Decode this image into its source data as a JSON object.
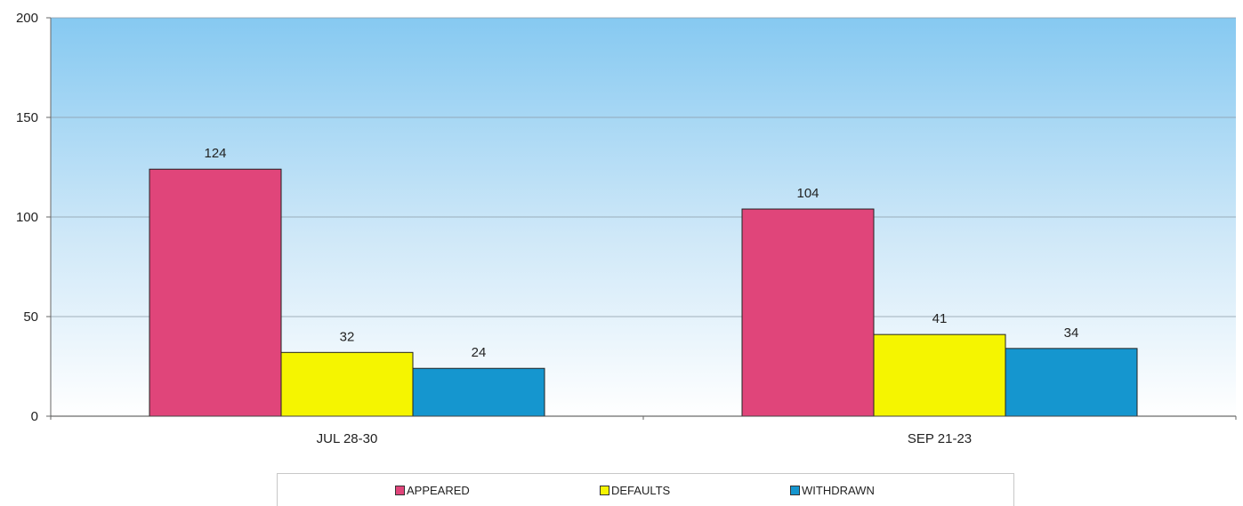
{
  "chart_data": {
    "type": "bar",
    "title": "",
    "xlabel": "",
    "ylabel": "",
    "categories": [
      "JUL 28-30",
      "SEP 21-23"
    ],
    "series": [
      {
        "name": "APPEARED",
        "values": [
          124,
          104
        ],
        "color": "#e0457a"
      },
      {
        "name": "DEFAULTS",
        "values": [
          32,
          41
        ],
        "color": "#f5f500"
      },
      {
        "name": "WITHDRAWN",
        "values": [
          24,
          34
        ],
        "color": "#1596cf"
      }
    ],
    "ylim": [
      0,
      200
    ],
    "yticks": [
      "0",
      "50",
      "100",
      "150",
      "200"
    ],
    "grid": true,
    "legend_position": "bottom",
    "background_gradient": [
      "#86c9f1",
      "#ffffff"
    ]
  }
}
